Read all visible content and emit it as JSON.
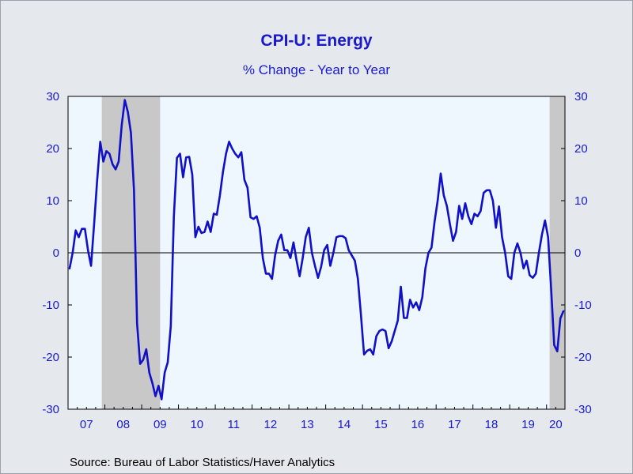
{
  "chart_data": {
    "type": "line",
    "title": "CPI-U: Energy",
    "subtitle": "% Change - Year to Year",
    "source": "Source:  Bureau of Labor Statistics/Haver Analytics",
    "ylim": [
      -30,
      30
    ],
    "yticks": [
      30,
      20,
      10,
      0,
      -10,
      -20,
      -30
    ],
    "y_axes": "both",
    "x_range": [
      "2007-01",
      "2020-06"
    ],
    "year_labels": [
      "07",
      "08",
      "09",
      "10",
      "11",
      "12",
      "13",
      "14",
      "15",
      "16",
      "17",
      "18",
      "19",
      "20"
    ],
    "recessions": [
      {
        "start": "2007-12",
        "end": "2009-06"
      },
      {
        "start": "2020-02",
        "end": "2020-06"
      }
    ],
    "zero_line": true,
    "colors": {
      "line": "#1010c8",
      "plot_background": "#eef6fe",
      "recession": "#c8c8c8",
      "text": "#1a1acc",
      "page_background": "#e5e9ee"
    },
    "series": [
      {
        "start": "2007-01",
        "values": [
          -3.0,
          0.0,
          4.3,
          3.0,
          4.6,
          4.6,
          0.5,
          -2.5,
          5.5,
          14.0,
          21.3,
          17.5,
          19.5,
          19.0,
          17.0,
          16.0,
          17.5,
          24.5,
          29.3,
          27.0,
          23.0,
          12.0,
          -13.5,
          -21.3,
          -20.5,
          -18.5,
          -23.0,
          -25.0,
          -27.5,
          -25.5,
          -28.1,
          -23.0,
          -21.0,
          -14.0,
          7.0,
          18.2,
          19.0,
          14.5,
          18.3,
          18.4,
          15.0,
          3.0,
          5.0,
          3.8,
          4.0,
          6.0,
          4.0,
          7.5,
          7.3,
          11.0,
          15.5,
          19.0,
          21.3,
          20.0,
          19.0,
          18.3,
          19.3,
          14.0,
          12.5,
          6.8,
          6.5,
          7.0,
          4.8,
          -1.0,
          -4.0,
          -4.0,
          -5.0,
          -0.5,
          2.3,
          3.5,
          0.5,
          0.5,
          -1.0,
          2.0,
          -1.5,
          -4.5,
          -1.0,
          3.0,
          4.8,
          0.0,
          -2.5,
          -4.8,
          -2.7,
          0.5,
          1.5,
          -2.5,
          0.0,
          3.0,
          3.2,
          3.2,
          2.8,
          0.5,
          -0.5,
          -1.5,
          -5.0,
          -12.0,
          -19.5,
          -18.8,
          -18.5,
          -19.5,
          -16.0,
          -15.0,
          -14.7,
          -15.0,
          -18.3,
          -17.0,
          -15.0,
          -13.0,
          -6.5,
          -12.5,
          -12.5,
          -9.0,
          -10.5,
          -9.5,
          -11.0,
          -8.5,
          -3.0,
          0.0,
          1.0,
          6.0,
          10.0,
          15.2,
          11.0,
          9.0,
          5.5,
          2.3,
          4.0,
          9.0,
          6.5,
          9.5,
          7.0,
          5.5,
          7.5,
          7.0,
          8.0,
          11.5,
          12.0,
          12.0,
          10.0,
          4.8,
          8.9,
          3.0,
          0.0,
          -4.5,
          -5.0,
          0.0,
          1.8,
          0.0,
          -3.0,
          -1.5,
          -4.3,
          -4.8,
          -4.0,
          0.0,
          3.5,
          6.2,
          3.0,
          -7.0,
          -17.7,
          -18.9,
          -12.6,
          -11.2
        ]
      }
    ]
  }
}
